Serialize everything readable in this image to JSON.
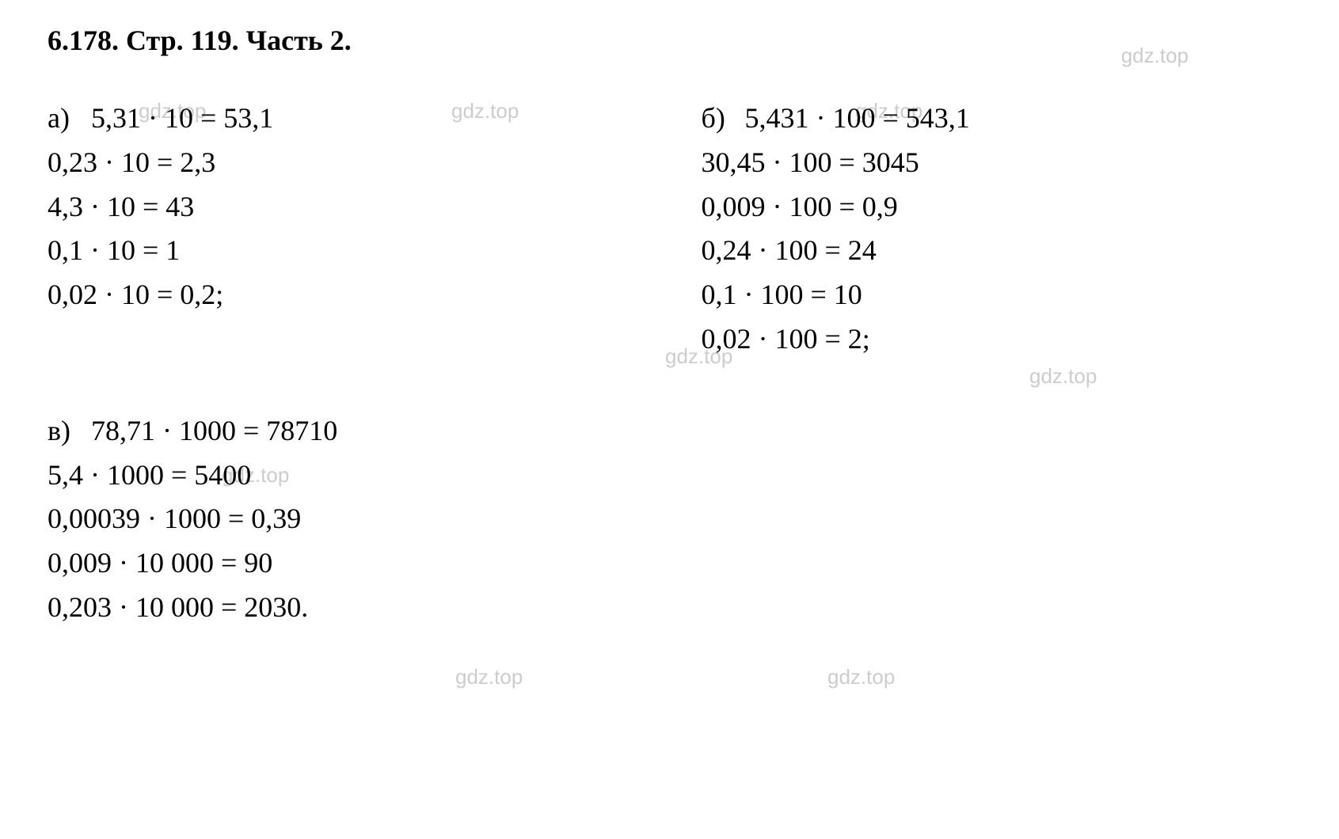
{
  "page": {
    "title": "6.178. Стр. 119. Часть 2.",
    "watermark_text": "gdz.top",
    "background_color": "#ffffff",
    "text_color": "#000000",
    "watermark_color": "#cccccc",
    "title_fontsize": 36,
    "equation_fontsize": 36,
    "font_family": "Times New Roman"
  },
  "sections": {
    "a": {
      "label": "а)",
      "equations": [
        "5,31 · 10 = 53,1",
        "0,23 · 10 = 2,3",
        "4,3 · 10 = 43",
        "0,1 · 10 = 1",
        "0,02 · 10 = 0,2;"
      ]
    },
    "b": {
      "label": "б)",
      "equations": [
        "5,431 · 100 = 543,1",
        "30,45 · 100 = 3045",
        "0,009 · 100 = 0,9",
        "0,24 · 100 = 24",
        "0,1 · 100 = 10",
        "0,02 · 100 = 2;"
      ]
    },
    "c": {
      "label": "в)",
      "equations": [
        "78,71 · 1000 = 78710",
        "5,4 · 1000 = 5400",
        "0,00039 · 1000 = 0,39",
        "0,009 · 10 000 = 90",
        "0,203 · 10 000 = 2030."
      ]
    }
  }
}
